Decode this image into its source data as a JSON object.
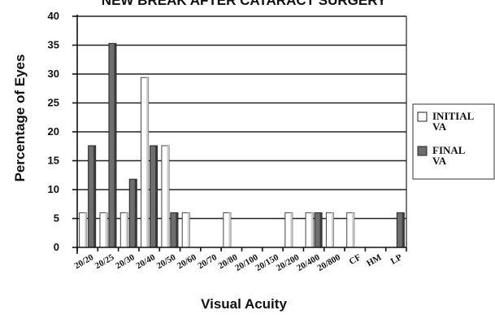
{
  "chart_data": {
    "type": "bar",
    "title": "NEW BREAK AFTER CATARACT SURGERY",
    "xlabel": "Visual Acuity",
    "ylabel": "Percentage of Eyes",
    "ylim": [
      0,
      40
    ],
    "yticks": [
      0,
      5,
      10,
      15,
      20,
      25,
      30,
      35,
      40
    ],
    "grid": true,
    "legend_position": "right",
    "categories": [
      "20/20",
      "20/25",
      "20/30",
      "20/40",
      "20/50",
      "20/60",
      "20/70",
      "20/80",
      "20/100",
      "20/150",
      "20/200",
      "20/400",
      "20/800",
      "CF",
      "HM",
      "LP"
    ],
    "series": [
      {
        "name": "INITIAL VA",
        "legend_lines": [
          "INITIAL",
          "VA"
        ],
        "color": "#ffffff",
        "values": [
          6,
          6,
          6,
          29.4,
          17.6,
          6,
          0,
          6,
          0,
          0,
          6,
          6,
          6,
          6,
          0,
          0
        ]
      },
      {
        "name": "FINAL VA",
        "legend_lines": [
          "FINAL",
          "VA"
        ],
        "color": "#6e6e6e",
        "values": [
          17.6,
          35.3,
          11.8,
          17.6,
          6,
          0,
          0,
          0,
          0,
          0,
          0,
          6,
          0,
          0,
          0,
          6
        ]
      }
    ]
  }
}
